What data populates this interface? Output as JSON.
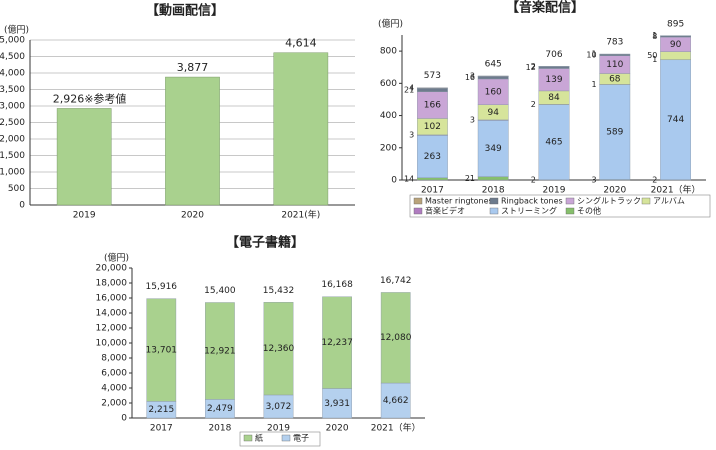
{
  "chart_data": [
    {
      "type": "bar",
      "title": "【動画配信】",
      "ylabel": "(億円)",
      "categories": [
        "2019",
        "2020",
        "2021(年)"
      ],
      "values": [
        2926,
        3877,
        4614
      ],
      "value_labels": [
        "2,926※参考値",
        "3,877",
        "4,614"
      ],
      "color": "#a9d18e",
      "ylim": [
        0,
        5000
      ],
      "yticks": [
        0,
        500,
        {
          "value": 1000,
          "label": "1,000"
        },
        {
          "value": 1500,
          "label": "1,500"
        },
        {
          "value": 2000,
          "label": "2,000"
        },
        {
          "value": 2500,
          "label": "2,500"
        },
        {
          "value": 3000,
          "label": "3,000"
        },
        {
          "value": 3500,
          "label": "3,500"
        },
        {
          "value": 4000,
          "label": "4,000"
        },
        {
          "value": 4500,
          "label": "4,500"
        },
        {
          "value": 5000,
          "label": "5,000"
        }
      ],
      "grid": true
    },
    {
      "type": "stacked_bar",
      "title": "【音楽配信】",
      "ylabel": "(億円)",
      "categories": [
        "2017",
        "2018",
        "2019",
        "2020",
        "2021（年）"
      ],
      "series": [
        {
          "name": "Master ringtones",
          "color": "#b9a37a",
          "values": [
            4,
            3,
            2,
            1,
            1
          ]
        },
        {
          "name": "Ringback tones",
          "color": "#6d7b8d",
          "values": [
            21,
            16,
            12,
            10,
            8
          ]
        },
        {
          "name": "シングルトラック",
          "color": "#c9a6d6",
          "values": [
            166,
            160,
            139,
            110,
            90
          ]
        },
        {
          "name": "アルバム",
          "color": "#d6e49b",
          "values": [
            102,
            94,
            84,
            68,
            50
          ]
        },
        {
          "name": "音楽ビデオ",
          "color": "#b07cc0",
          "values": [
            3,
            3,
            2,
            1,
            1
          ]
        },
        {
          "name": "ストリーミング",
          "color": "#a9c9ee",
          "values": [
            263,
            349,
            465,
            589,
            744
          ]
        },
        {
          "name": "その他",
          "color": "#86bf6c",
          "values": [
            14,
            21,
            2,
            3,
            2
          ]
        }
      ],
      "totals": [
        573,
        645,
        706,
        783,
        895
      ],
      "ylim": [
        0,
        900
      ],
      "yticks": [
        0,
        200,
        400,
        600,
        800
      ],
      "grid": false
    },
    {
      "type": "stacked_bar",
      "title": "【電子書籍】",
      "ylabel": "(億円)",
      "categories": [
        "2017",
        "2018",
        "2019",
        "2020",
        "2021（年）"
      ],
      "series": [
        {
          "name": "紙",
          "color": "#a9d18e",
          "values": [
            13701,
            12921,
            12360,
            12237,
            12080
          ],
          "value_labels": [
            "13,701",
            "12,921",
            "12,360",
            "12,237",
            "12,080"
          ]
        },
        {
          "name": "電子",
          "color": "#b4d0ee",
          "values": [
            2215,
            2479,
            3072,
            3931,
            4662
          ],
          "value_labels": [
            "2,215",
            "2,479",
            "3,072",
            "3,931",
            "4,662"
          ]
        }
      ],
      "totals": [
        15916,
        15400,
        15432,
        16168,
        16742
      ],
      "total_labels": [
        "15,916",
        "15,400",
        "15,432",
        "16,168",
        "16,742"
      ],
      "ylim": [
        0,
        20000
      ],
      "yticks": [
        0,
        {
          "value": 2000,
          "label": "2,000"
        },
        {
          "value": 4000,
          "label": "4,000"
        },
        {
          "value": 6000,
          "label": "6,000"
        },
        {
          "value": 8000,
          "label": "8,000"
        },
        {
          "value": 10000,
          "label": "10,000"
        },
        {
          "value": 12000,
          "label": "12,000"
        },
        {
          "value": 14000,
          "label": "14,000"
        },
        {
          "value": 16000,
          "label": "16,000"
        },
        {
          "value": 18000,
          "label": "18,000"
        },
        {
          "value": 20000,
          "label": "20,000"
        }
      ],
      "grid": false
    }
  ]
}
